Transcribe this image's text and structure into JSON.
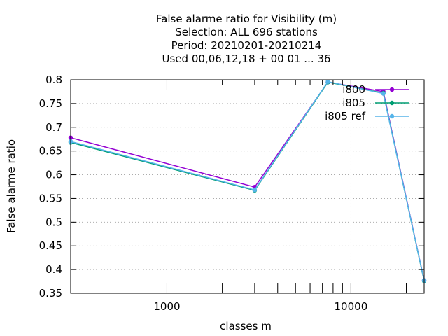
{
  "chart_data": {
    "type": "line",
    "title_lines": [
      "False alarme ratio  for Visibility (m)",
      "Selection: ALL    696 stations",
      "Period: 20210201-20210214",
      "Used  00,06,12,18 + 00 01 ... 36"
    ],
    "xlabel": "classes m",
    "ylabel": "False alarme ratio",
    "x_scale": "log",
    "xlim": [
      300,
      25000
    ],
    "ylim": [
      0.35,
      0.8
    ],
    "x_ticks": [
      1000,
      10000
    ],
    "x_tick_labels": [
      "1000",
      "10000"
    ],
    "x_minor_ticks": [
      2000,
      3000,
      4000,
      5000,
      6000,
      7000,
      8000,
      9000,
      20000
    ],
    "y_ticks": [
      0.35,
      0.4,
      0.45,
      0.5,
      0.55,
      0.6,
      0.65,
      0.7,
      0.75,
      0.8
    ],
    "y_tick_labels": [
      "0.35",
      "0.4",
      "0.45",
      "0.5",
      "0.55",
      "0.6",
      "0.65",
      "0.7",
      "0.75",
      "0.8"
    ],
    "grid": true,
    "legend_position": "top-right",
    "series": [
      {
        "name": "i800",
        "color": "#9400d3",
        "x": [
          300,
          3000,
          7500,
          15000,
          25000
        ],
        "y": [
          0.678,
          0.574,
          0.795,
          0.775,
          0.377
        ]
      },
      {
        "name": "i805",
        "color": "#009e73",
        "x": [
          300,
          3000,
          7500,
          15000,
          25000
        ],
        "y": [
          0.668,
          0.567,
          0.795,
          0.772,
          0.376
        ]
      },
      {
        "name": "i805_ref",
        "legend_label": "i805 ref",
        "color": "#56b4e9",
        "x": [
          300,
          3000,
          7500,
          15000,
          25000
        ],
        "y": [
          0.67,
          0.568,
          0.796,
          0.771,
          0.377
        ]
      }
    ]
  }
}
